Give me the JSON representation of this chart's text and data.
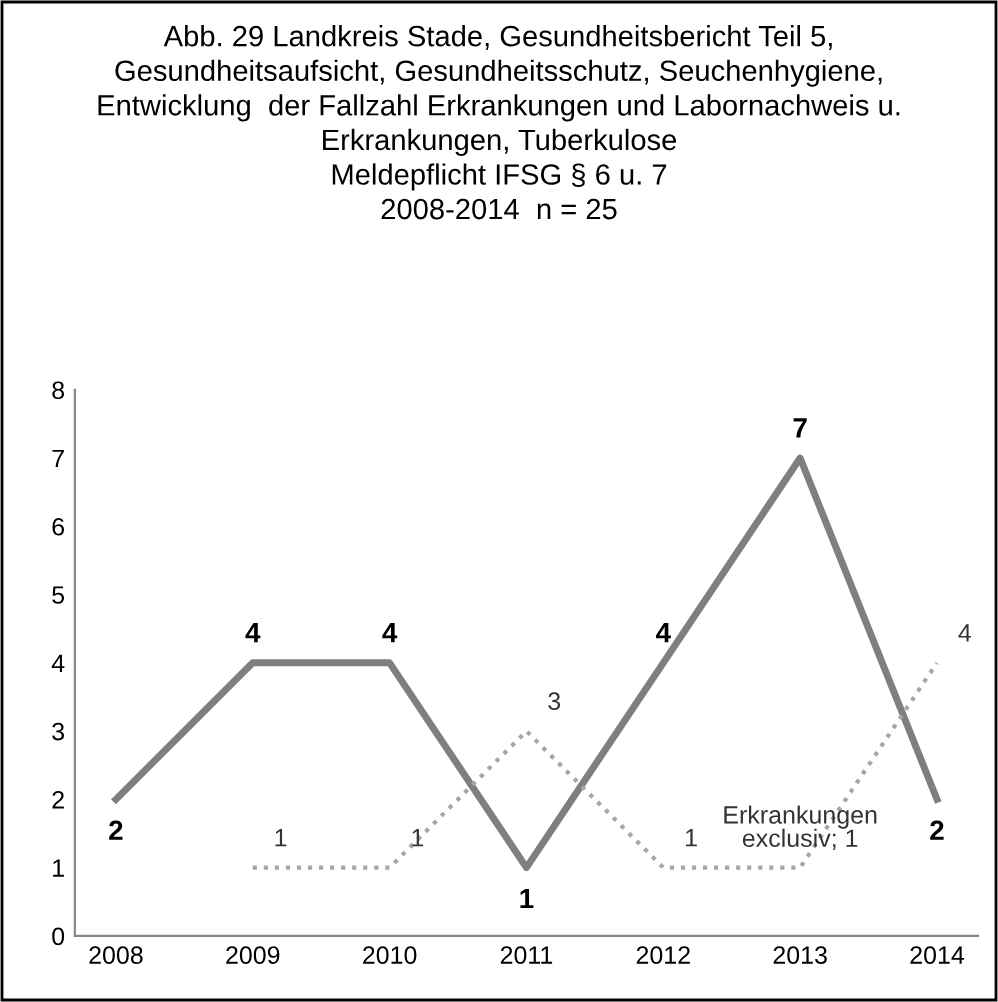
{
  "chart_data": {
    "type": "line",
    "title": "Abb. 29 Landkreis Stade, Gesundheitsbericht Teil 5,\nGesundheitsaufsicht, Gesundheitsschutz, Seuchenhygiene,\nEntwicklung  der Fallzahl Erkrankungen und Labornachweis u.\nErkrankungen, Tuberkulose\nMeldepflicht IFSG § 6 u. 7\n2008-2014  n = 25",
    "categories": [
      "2008",
      "2009",
      "2010",
      "2011",
      "2012",
      "2013",
      "2014"
    ],
    "series": [
      {
        "color": "#7f7f7f",
        "line_style": "solid",
        "values": [
          2,
          4,
          4,
          1,
          4,
          7,
          2
        ],
        "value_labels": [
          "2",
          "4",
          "4",
          "1",
          "4",
          "7",
          "2"
        ]
      },
      {
        "color": "#a6a6a6",
        "line_style": "dotted",
        "values": [
          null,
          1,
          1,
          3,
          1,
          1,
          4
        ],
        "value_labels": [
          null,
          "1",
          "1",
          "3",
          "1",
          "Erkrankungen\nexclusiv; 1",
          "4"
        ]
      }
    ],
    "ylim": [
      0,
      8
    ],
    "yticks": [
      0,
      1,
      2,
      3,
      4,
      5,
      6,
      7,
      8
    ],
    "grid": false,
    "legend": false,
    "marker": "none"
  }
}
